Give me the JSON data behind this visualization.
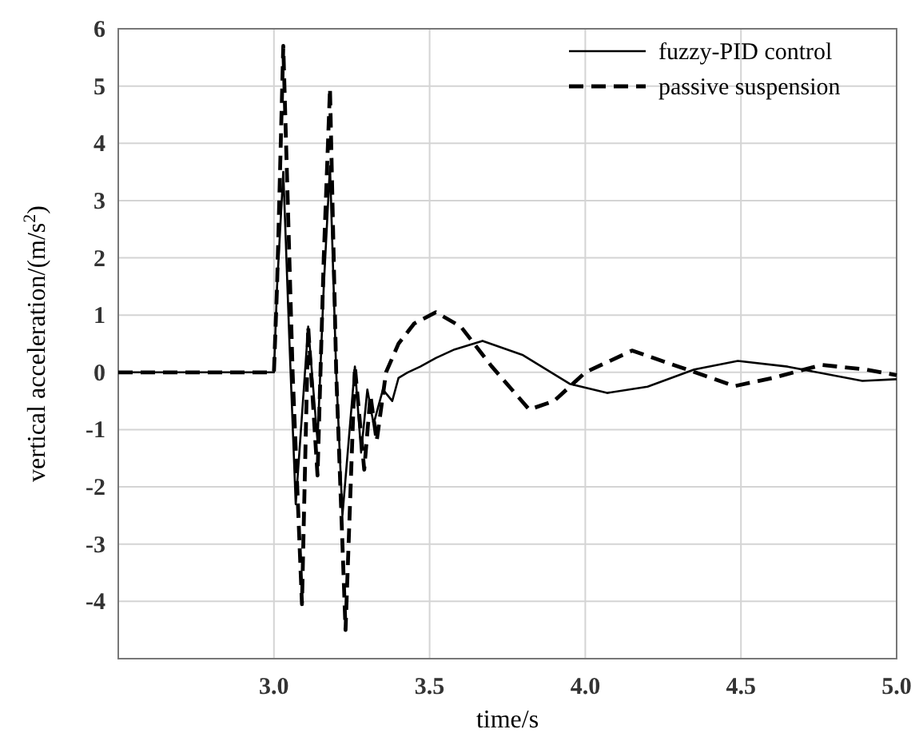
{
  "chart_data": {
    "type": "line",
    "xlabel": "time/s",
    "ylabel": "vertical acceleration/(m/s$^{2}$)",
    "xlim": [
      2.5,
      5.0
    ],
    "xticks": [
      {
        "value": 3,
        "label": "3.0"
      },
      3.5,
      {
        "value": 4,
        "label": "4.0"
      },
      4.5,
      {
        "value": 5,
        "label": "5.0"
      }
    ],
    "ylim": [
      -5,
      6
    ],
    "yticks": [
      -4,
      -3,
      -2,
      -1,
      0,
      1,
      2,
      3,
      4,
      5,
      6
    ],
    "grid": true,
    "legend": "top right",
    "marker": "none",
    "series": [
      {
        "name": "fuzzy-PID control",
        "color": "#000000",
        "line_style": "solid",
        "x": [
          2.5,
          3.0,
          3.01,
          3.03,
          3.05,
          3.07,
          3.11,
          3.14,
          3.16,
          3.18,
          3.2,
          3.22,
          3.26,
          3.28,
          3.3,
          3.32,
          3.35,
          3.38,
          3.4,
          3.43,
          3.47,
          3.52,
          3.58,
          3.67,
          3.8,
          3.95,
          4.07,
          4.2,
          4.35,
          4.49,
          4.65,
          4.89,
          5.0
        ],
        "values": [
          0,
          0,
          1.5,
          3.5,
          0.5,
          -2.3,
          0.8,
          -1.2,
          1.5,
          3.6,
          0,
          -2.5,
          0.1,
          -1.4,
          -0.3,
          -0.9,
          -0.3,
          -0.5,
          -0.1,
          0.0,
          0.1,
          0.25,
          0.4,
          0.55,
          0.3,
          -0.2,
          -0.36,
          -0.25,
          0.05,
          0.2,
          0.1,
          -0.15,
          -0.12
        ]
      },
      {
        "name": "passive suspension",
        "color": "#000000",
        "line_style": "dashed",
        "x": [
          2.5,
          3.0,
          3.01,
          3.03,
          3.06,
          3.09,
          3.11,
          3.14,
          3.16,
          3.18,
          3.2,
          3.23,
          3.26,
          3.29,
          3.31,
          3.33,
          3.36,
          3.4,
          3.45,
          3.52,
          3.6,
          3.7,
          3.82,
          3.9,
          4.0,
          4.15,
          4.3,
          4.48,
          4.6,
          4.76,
          4.9,
          5.0
        ],
        "values": [
          0,
          0,
          1.5,
          5.7,
          0,
          -4.05,
          0.8,
          -1.8,
          2.0,
          4.96,
          0,
          -4.5,
          0.1,
          -1.7,
          -0.4,
          -1.2,
          0,
          0.5,
          0.85,
          1.05,
          0.8,
          0.1,
          -0.65,
          -0.5,
          0,
          0.38,
          0.1,
          -0.24,
          -0.1,
          0.13,
          0.05,
          -0.05
        ]
      }
    ]
  }
}
